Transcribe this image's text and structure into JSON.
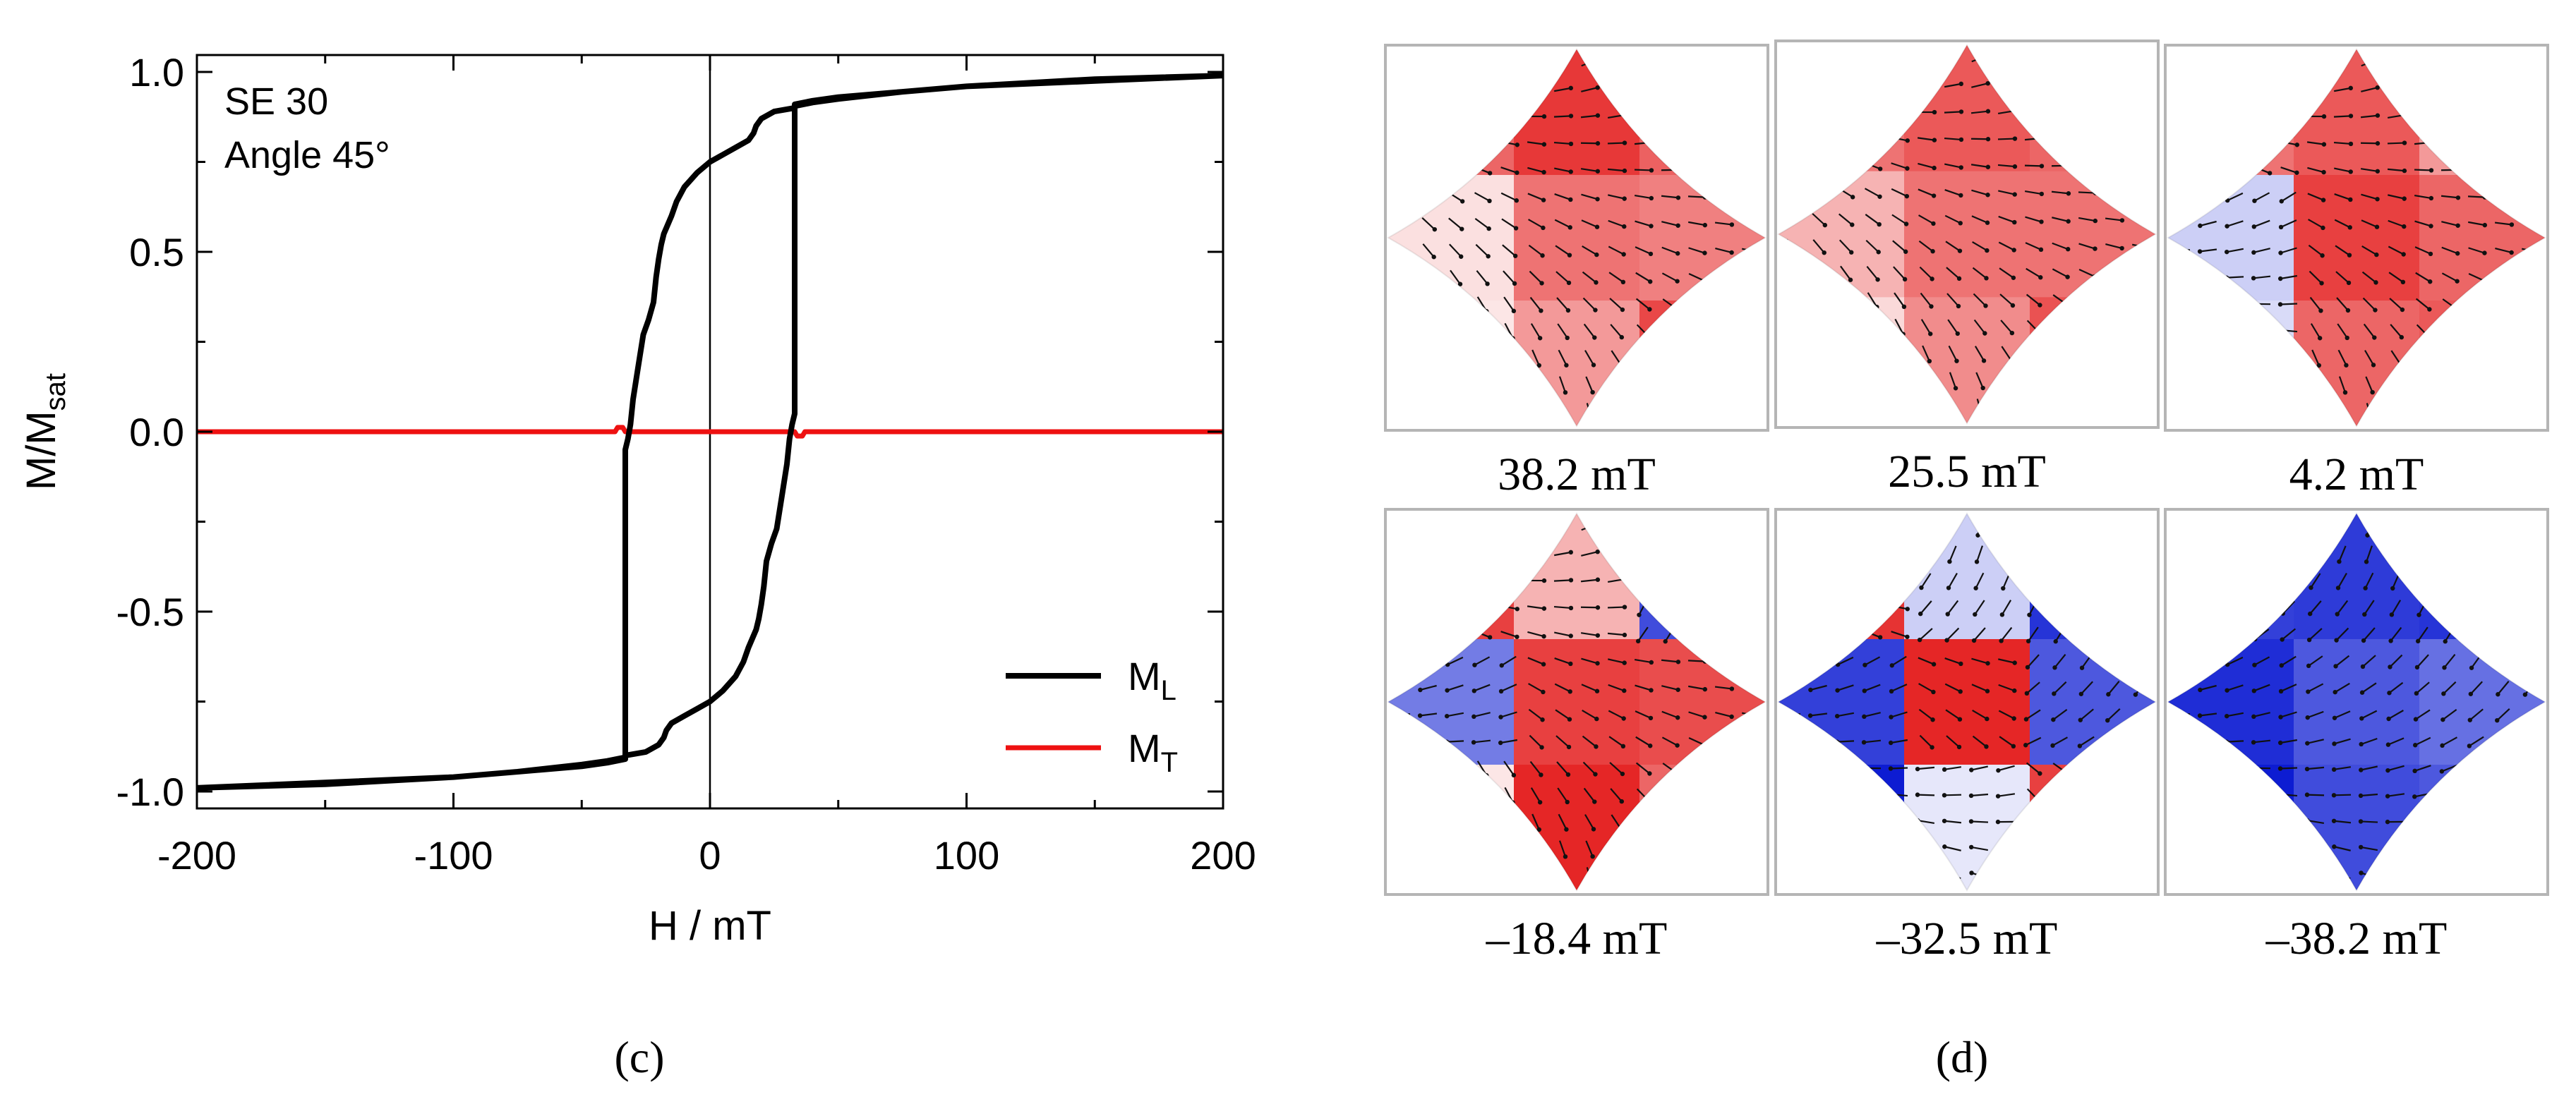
{
  "chart_data": [
    {
      "panel": "c",
      "type": "line",
      "xlabel": "H / mT",
      "ylabel_main": "M/M",
      "ylabel_sub": "sat",
      "xlim": [
        -200,
        200
      ],
      "ylim": [
        -1.05,
        1.05
      ],
      "xticks": [
        -200,
        -100,
        0,
        100,
        200
      ],
      "xtick_labels": [
        "-200",
        "-100",
        "0",
        "100",
        "200"
      ],
      "yticks": [
        1.0,
        0.5,
        0.0,
        -0.5,
        -1.0
      ],
      "ytick_labels": [
        "1.0",
        "0.5",
        "0.0",
        "-0.5",
        "-1.0"
      ],
      "annotation": [
        "SE 30",
        "Angle 45°"
      ],
      "legend_position": "bottom-right",
      "series": [
        {
          "name": "M_L",
          "legend_main": "M",
          "legend_sub": "L",
          "color": "#000000",
          "x": [
            200,
            150,
            100,
            75,
            50,
            40,
            33,
            33,
            25,
            20,
            18,
            17,
            15,
            10,
            5,
            0,
            -5,
            -10,
            -13,
            -15,
            -18,
            -19,
            -20,
            -21,
            -22,
            -24,
            -26,
            -28,
            -30,
            -31,
            -32,
            -33,
            -33,
            -40,
            -50,
            -75,
            -100,
            -150,
            -200,
            -150,
            -100,
            -75,
            -50,
            -40,
            -33,
            -33,
            -25,
            -20,
            -18,
            -17,
            -15,
            -10,
            -5,
            0,
            5,
            10,
            13,
            15,
            18,
            19,
            20,
            21,
            22,
            24,
            26,
            28,
            30,
            31,
            32,
            33,
            33,
            40,
            50,
            75,
            100,
            150,
            200
          ],
          "y": [
            0.99,
            0.98,
            0.96,
            0.945,
            0.925,
            0.915,
            0.905,
            0.9,
            0.89,
            0.87,
            0.85,
            0.83,
            0.81,
            0.79,
            0.77,
            0.75,
            0.72,
            0.68,
            0.64,
            0.6,
            0.55,
            0.52,
            0.48,
            0.43,
            0.36,
            0.31,
            0.27,
            0.18,
            0.09,
            0.02,
            -0.02,
            -0.05,
            -0.91,
            -0.92,
            -0.93,
            -0.945,
            -0.96,
            -0.975,
            -0.99,
            -0.98,
            -0.96,
            -0.945,
            -0.925,
            -0.915,
            -0.905,
            -0.9,
            -0.89,
            -0.87,
            -0.85,
            -0.83,
            -0.81,
            -0.79,
            -0.77,
            -0.75,
            -0.72,
            -0.68,
            -0.64,
            -0.6,
            -0.55,
            -0.52,
            -0.48,
            -0.43,
            -0.36,
            -0.31,
            -0.27,
            -0.18,
            -0.09,
            -0.02,
            0.02,
            0.05,
            0.91,
            0.92,
            0.93,
            0.945,
            0.96,
            0.975,
            0.99
          ]
        },
        {
          "name": "M_T",
          "legend_main": "M",
          "legend_sub": "T",
          "color": "#ee1111",
          "x": [
            -200,
            -37,
            -36,
            -34,
            -33,
            33,
            34,
            36,
            37,
            200
          ],
          "y": [
            0.0,
            0.0,
            0.012,
            0.012,
            0.0,
            0.0,
            -0.012,
            -0.012,
            0.0,
            0.0
          ]
        }
      ],
      "panel_label": "(c)"
    },
    {
      "panel": "d",
      "type": "image-grid",
      "description_labels": [
        "38.2 mT",
        "25.5 mT",
        "4.2 mT",
        "–18.4 mT",
        "–32.5 mT",
        "–38.2 mT"
      ],
      "color_scale": {
        "positive": "#e00000",
        "neutral": "#ffffff",
        "negative": "#0010d0"
      },
      "tiles": [
        {
          "label": "38.2 mT",
          "mx": [
            0.6,
            0.78,
            0.62,
            0.12,
            0.55,
            0.5,
            0.1,
            0.4,
            0.72
          ]
        },
        {
          "label": "25.5 mT",
          "mx": [
            0.55,
            0.65,
            0.6,
            0.3,
            0.55,
            0.55,
            0.15,
            0.45,
            0.68
          ]
        },
        {
          "label": "4.2 mT",
          "mx": [
            0.55,
            0.65,
            0.4,
            -0.2,
            0.75,
            0.6,
            -0.15,
            0.6,
            0.65
          ]
        },
        {
          "label": "–18.4 mT",
          "mx": [
            0.75,
            0.3,
            -0.75,
            -0.55,
            0.75,
            0.7,
            0.1,
            0.85,
            0.6
          ]
        },
        {
          "label": "–32.5 mT",
          "mx": [
            0.8,
            -0.2,
            -0.85,
            -0.8,
            0.85,
            -0.7,
            -0.95,
            -0.1,
            0.75
          ]
        },
        {
          "label": "–38.2 mT",
          "mx": [
            -0.8,
            -0.82,
            -0.85,
            -0.88,
            -0.7,
            -0.6,
            -0.95,
            -0.75,
            -0.7
          ]
        }
      ],
      "panel_label": "(d)"
    }
  ]
}
